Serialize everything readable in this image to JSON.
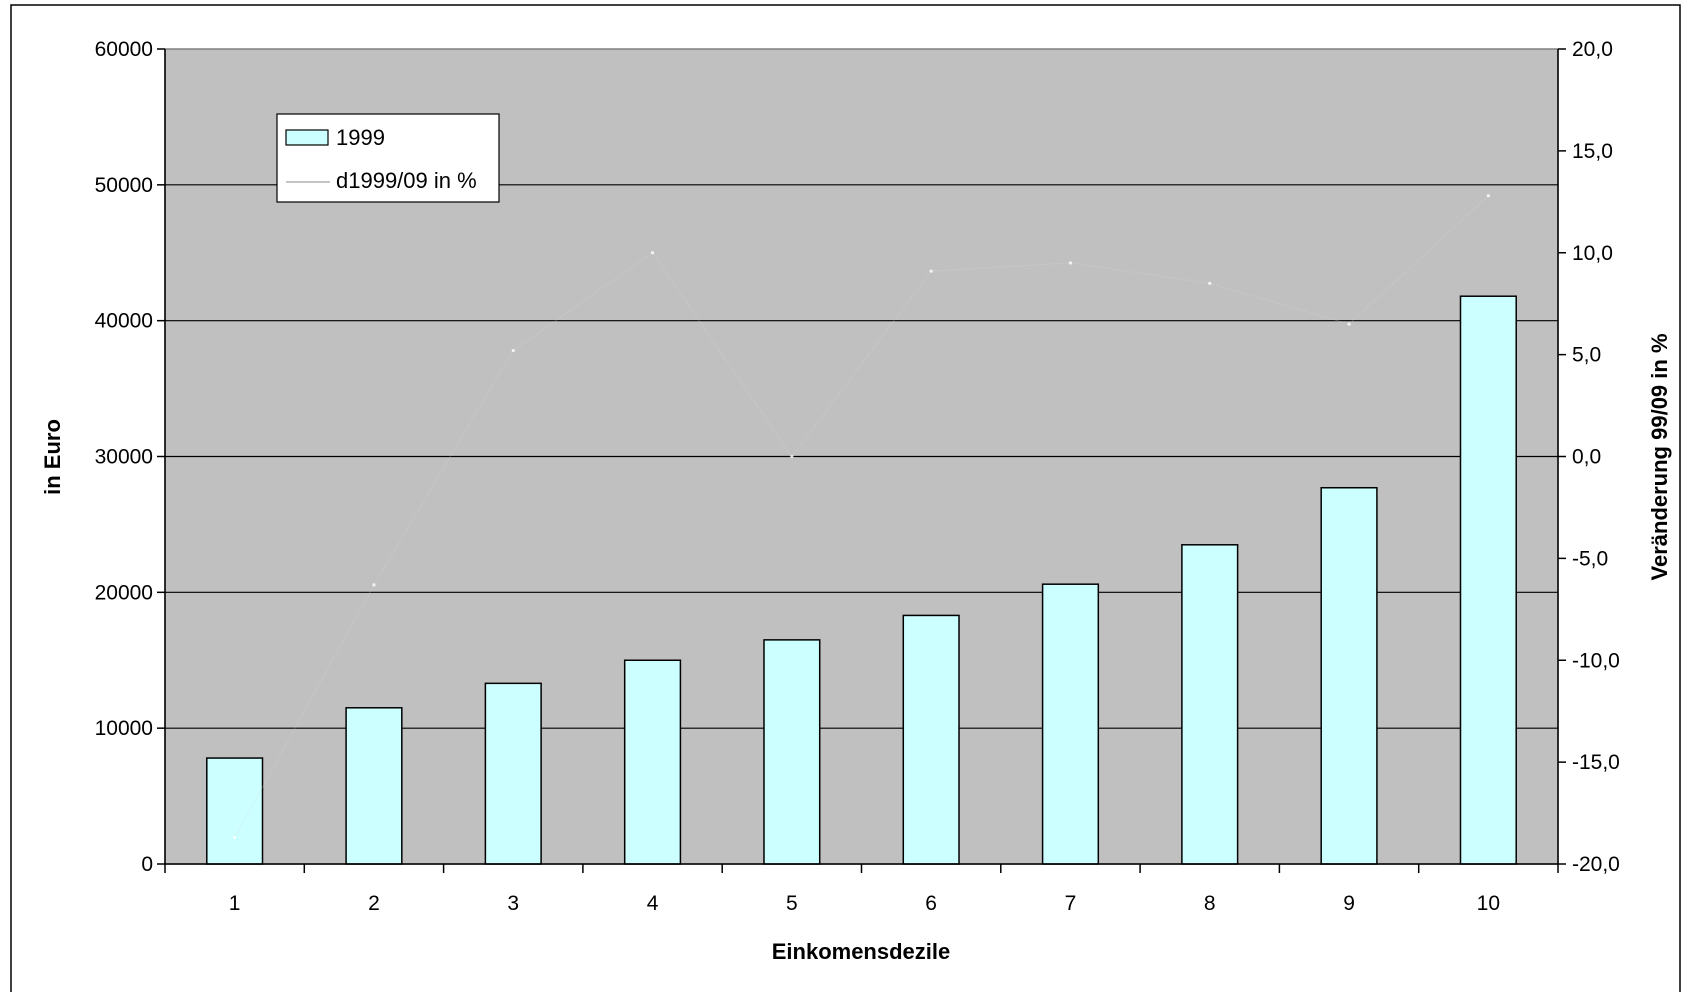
{
  "chart_data": {
    "type": "bar",
    "xlabel": "Einkomensdezile",
    "ylabel": "in Euro",
    "y2label": "Veränderung 99/09 in %",
    "categories": [
      "1",
      "2",
      "3",
      "4",
      "5",
      "6",
      "7",
      "8",
      "9",
      "10"
    ],
    "ylim": [
      0,
      60000
    ],
    "y_ticks": [
      "0",
      "10000",
      "20000",
      "30000",
      "40000",
      "50000",
      "60000"
    ],
    "y2lim": [
      -20,
      20
    ],
    "y2_ticks": [
      "-20,0",
      "-15,0",
      "-10,0",
      "-5,0",
      "0,0",
      "5,0",
      "10,0",
      "15,0",
      "20,0"
    ],
    "grid": true,
    "plot_background": "#c0c0c0",
    "series": [
      {
        "name": "1999",
        "type": "bar",
        "axis": "left",
        "color": "#ccffff",
        "values": [
          7800,
          11500,
          13300,
          15000,
          16500,
          18300,
          20600,
          23500,
          27700,
          41800
        ]
      },
      {
        "name": "d1999/09 in %",
        "type": "line",
        "axis": "right",
        "color": "#d9d9d9",
        "values": [
          -18.7,
          -6.3,
          5.2,
          10.0,
          0.0,
          9.1,
          9.5,
          8.5,
          6.5,
          12.8
        ]
      }
    ],
    "legend_position": "top-left"
  }
}
